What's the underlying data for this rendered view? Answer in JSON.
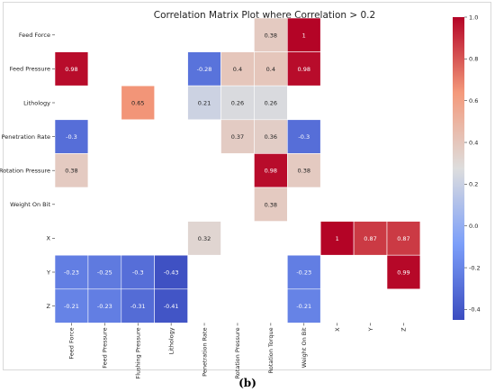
{
  "caption": "(b)",
  "chart_data": {
    "type": "heatmap",
    "title": "Correlation Matrix Plot where Correlation > 0.2",
    "rows": [
      "Feed Force",
      "Feed Pressure",
      "Lithology",
      "Penetration Rate",
      "Rotation Pressure",
      "Weight On Bit",
      "X",
      "Y",
      "Z"
    ],
    "columns": [
      "Feed Force",
      "Feed Pressure",
      "Flushing Pressure",
      "Lithology",
      "Penetration Rate",
      "Rotation Pressure",
      "Rotation Torque",
      "Weight On Bit",
      "X",
      "Y",
      "Z"
    ],
    "cells": [
      {
        "row": "Feed Force",
        "col": "Rotation Torque",
        "value": 0.38
      },
      {
        "row": "Feed Force",
        "col": "Weight On Bit",
        "value": 1
      },
      {
        "row": "Feed Pressure",
        "col": "Feed Force",
        "value": 0.98
      },
      {
        "row": "Feed Pressure",
        "col": "Penetration Rate",
        "value": -0.28
      },
      {
        "row": "Feed Pressure",
        "col": "Rotation Pressure",
        "value": 0.4
      },
      {
        "row": "Feed Pressure",
        "col": "Rotation Torque",
        "value": 0.4
      },
      {
        "row": "Feed Pressure",
        "col": "Weight On Bit",
        "value": 0.98
      },
      {
        "row": "Lithology",
        "col": "Flushing Pressure",
        "value": 0.65
      },
      {
        "row": "Lithology",
        "col": "Penetration Rate",
        "value": 0.21
      },
      {
        "row": "Lithology",
        "col": "Rotation Pressure",
        "value": 0.26
      },
      {
        "row": "Lithology",
        "col": "Rotation Torque",
        "value": 0.26
      },
      {
        "row": "Penetration Rate",
        "col": "Feed Force",
        "value": -0.3
      },
      {
        "row": "Penetration Rate",
        "col": "Rotation Pressure",
        "value": 0.37
      },
      {
        "row": "Penetration Rate",
        "col": "Rotation Torque",
        "value": 0.36
      },
      {
        "row": "Penetration Rate",
        "col": "Weight On Bit",
        "value": -0.3
      },
      {
        "row": "Rotation Pressure",
        "col": "Feed Force",
        "value": 0.38
      },
      {
        "row": "Rotation Pressure",
        "col": "Rotation Torque",
        "value": 0.98
      },
      {
        "row": "Rotation Pressure",
        "col": "Weight On Bit",
        "value": 0.38
      },
      {
        "row": "Weight On Bit",
        "col": "Rotation Torque",
        "value": 0.38
      },
      {
        "row": "X",
        "col": "Penetration Rate",
        "value": 0.32
      },
      {
        "row": "X",
        "col": "X",
        "value": 1
      },
      {
        "row": "X",
        "col": "Y",
        "value": 0.87
      },
      {
        "row": "X",
        "col": "Z",
        "value": 0.87
      },
      {
        "row": "Y",
        "col": "Feed Force",
        "value": -0.23
      },
      {
        "row": "Y",
        "col": "Feed Pressure",
        "value": -0.25
      },
      {
        "row": "Y",
        "col": "Flushing Pressure",
        "value": -0.3
      },
      {
        "row": "Y",
        "col": "Lithology",
        "value": -0.43
      },
      {
        "row": "Y",
        "col": "Weight On Bit",
        "value": -0.23
      },
      {
        "row": "Y",
        "col": "Z",
        "value": 0.99
      },
      {
        "row": "Z",
        "col": "Feed Force",
        "value": -0.21
      },
      {
        "row": "Z",
        "col": "Feed Pressure",
        "value": -0.23
      },
      {
        "row": "Z",
        "col": "Flushing Pressure",
        "value": -0.31
      },
      {
        "row": "Z",
        "col": "Lithology",
        "value": -0.41
      },
      {
        "row": "Z",
        "col": "Weight On Bit",
        "value": -0.21
      }
    ],
    "colorbar": {
      "range": [
        -0.45,
        1.0
      ],
      "ticks": [
        -0.4,
        -0.2,
        0.0,
        0.2,
        0.4,
        0.6,
        0.8,
        1.0
      ],
      "tick_labels": [
        "-0.4",
        "-0.2",
        "0.0",
        "0.2",
        "0.4",
        "0.6",
        "0.8",
        "1.0"
      ],
      "colormap": "coolwarm"
    },
    "grid": false
  }
}
